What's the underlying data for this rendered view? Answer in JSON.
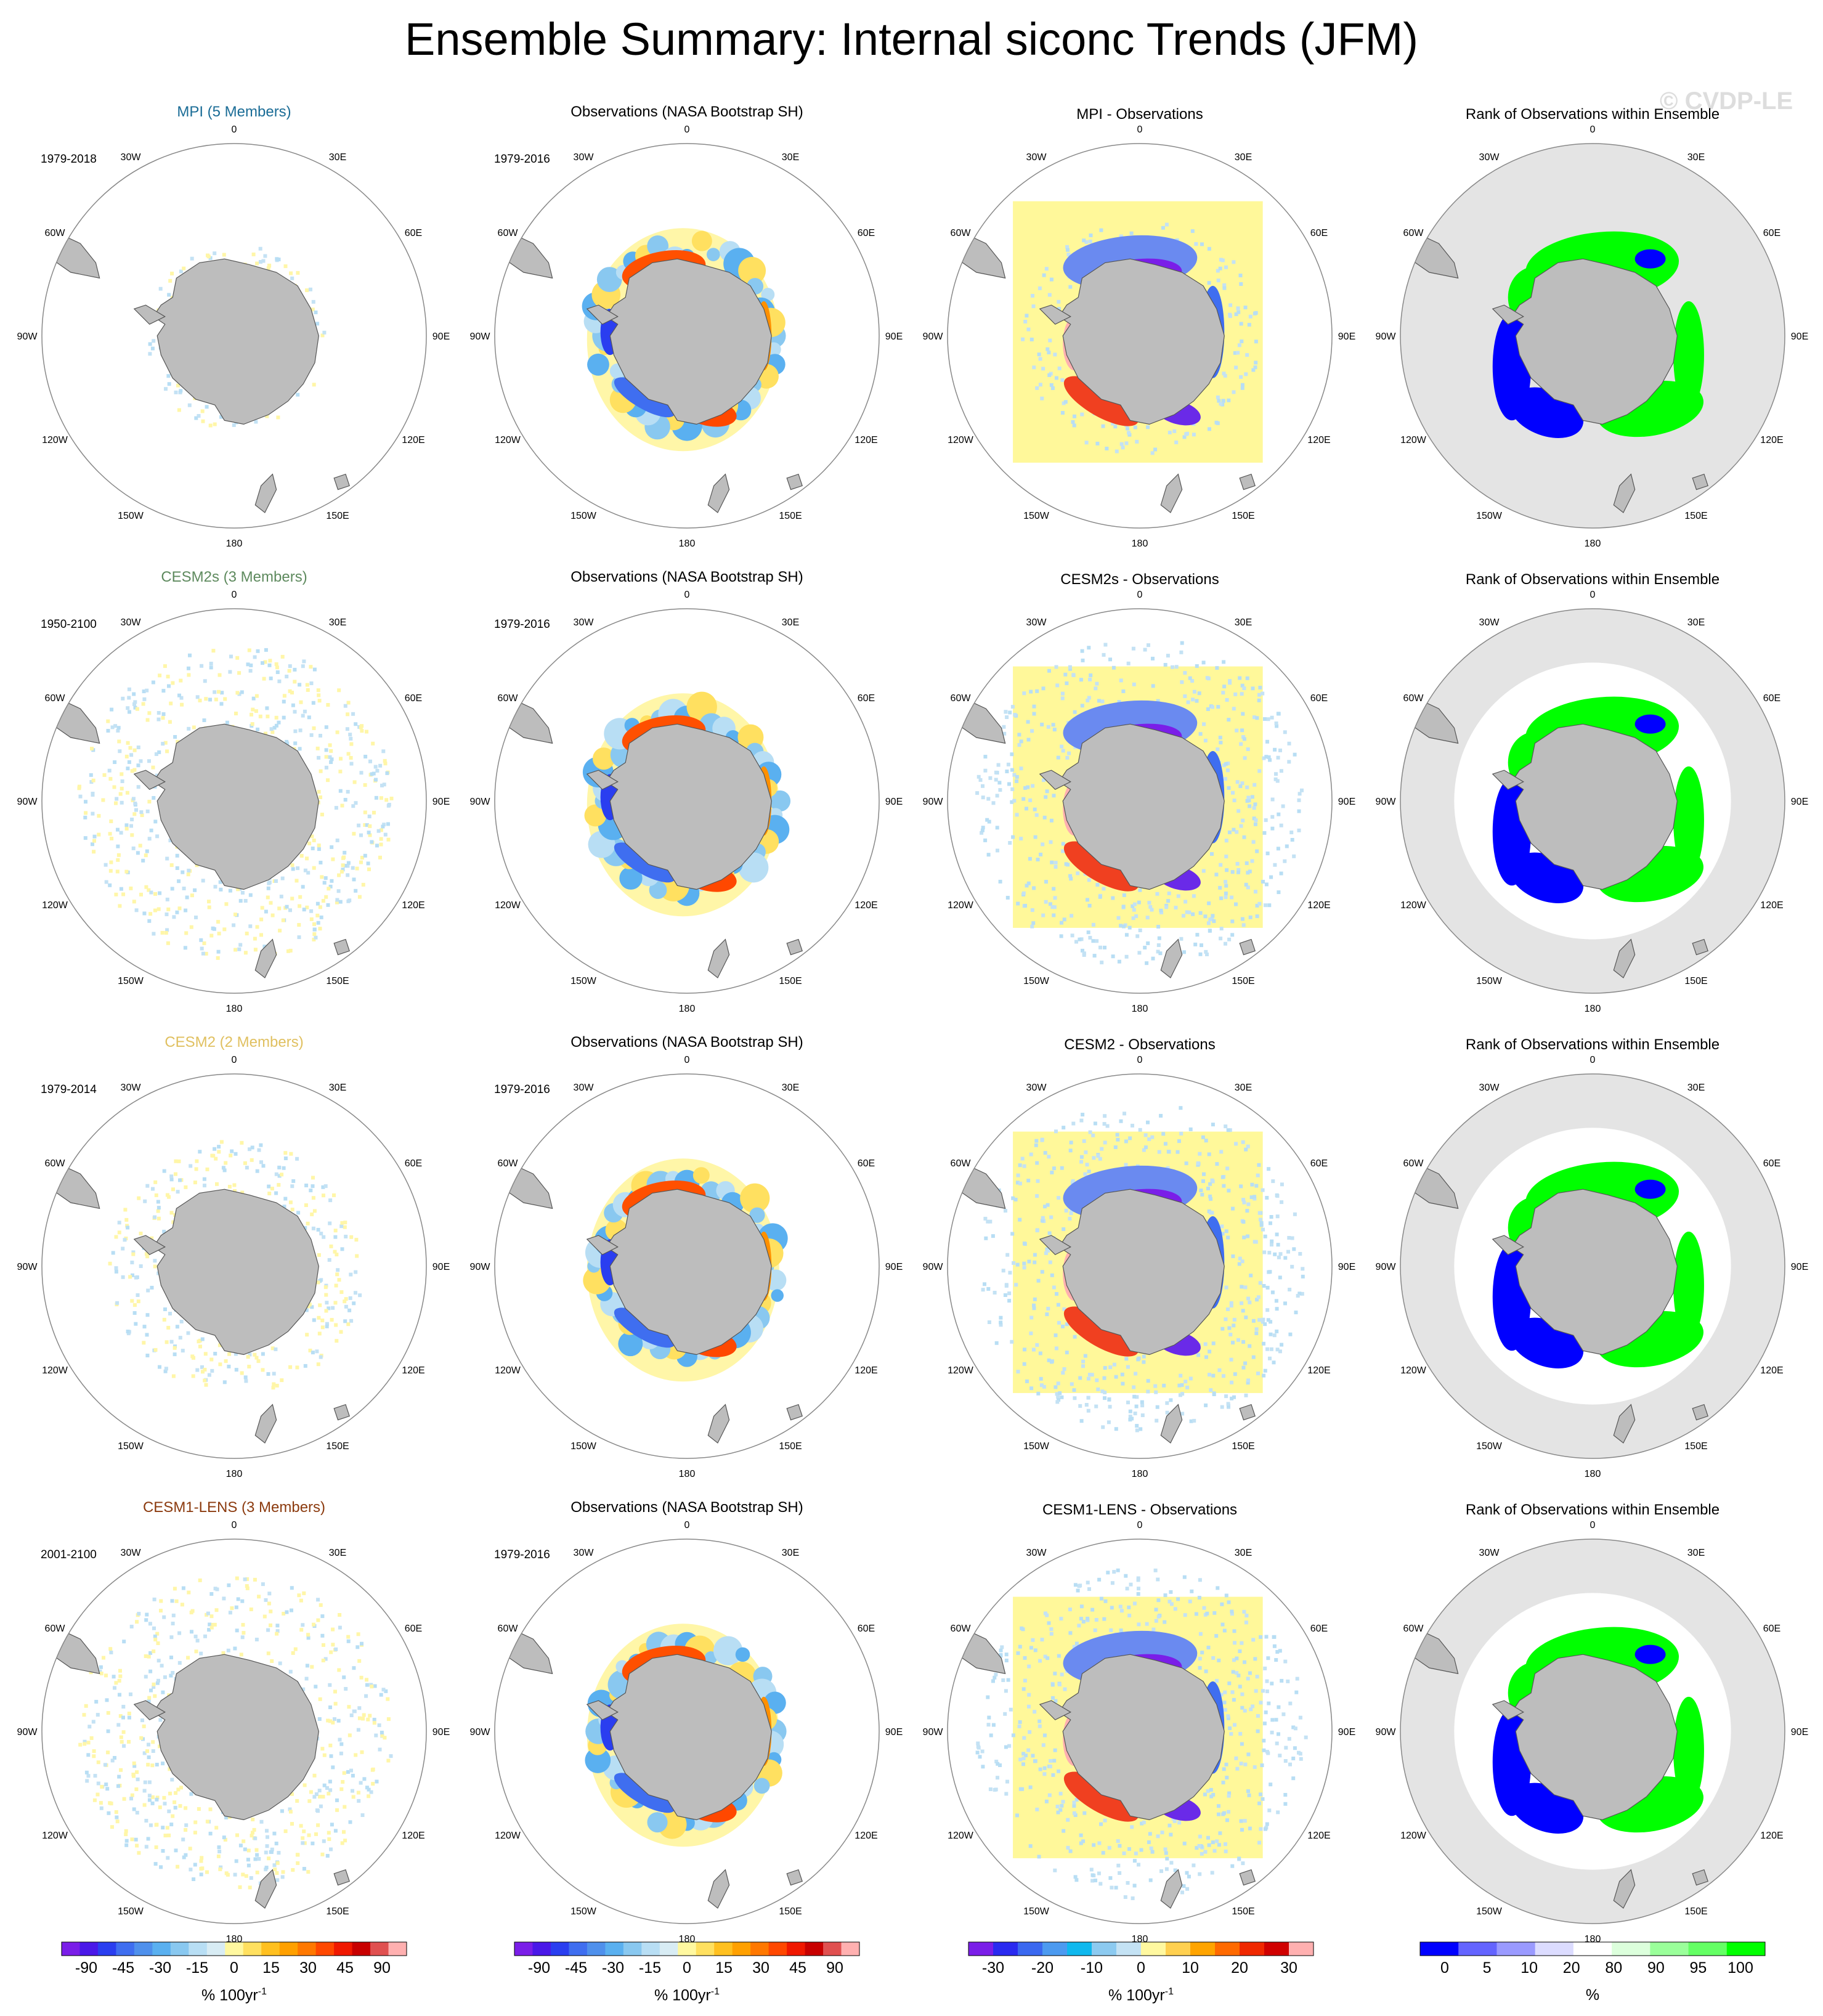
{
  "title": "Ensemble Summary: Internal siconc Trends (JFM)",
  "watermark": "© CVDP-LE",
  "rows": [
    {
      "model_title": "MPI (5 Members)",
      "model_color": "#1a6c96",
      "model_period": "1979-2018",
      "obs_title": "Observations (NASA Bootstrap SH)",
      "obs_period": "1979-2016",
      "diff_title": "MPI - Observations",
      "rank_title": "Rank of Observations within Ensemble",
      "model_coverage": "small",
      "rank_halo": false
    },
    {
      "model_title": "CESM2s (3 Members)",
      "model_color": "#5e8a5e",
      "model_period": "1950-2100",
      "obs_title": "Observations (NASA Bootstrap SH)",
      "obs_period": "1979-2016",
      "diff_title": "CESM2s - Observations",
      "rank_title": "Rank of Observations within Ensemble",
      "model_coverage": "large",
      "rank_halo": true
    },
    {
      "model_title": "CESM2 (2 Members)",
      "model_color": "#e0c060",
      "model_period": "1979-2014",
      "obs_title": "Observations (NASA Bootstrap SH)",
      "obs_period": "1979-2016",
      "diff_title": "CESM2 - Observations",
      "rank_title": "Rank of Observations within Ensemble",
      "model_coverage": "medium",
      "rank_halo": true
    },
    {
      "model_title": "CESM1-LENS (3 Members)",
      "model_color": "#8b3a0e",
      "model_period": "2001-2100",
      "obs_title": "Observations (NASA Bootstrap SH)",
      "obs_period": "1979-2016",
      "diff_title": "CESM1-LENS - Observations",
      "rank_title": "Rank of Observations within Ensemble",
      "model_coverage": "large",
      "rank_halo": true
    }
  ],
  "map": {
    "lat_labels": [
      "0",
      "30E",
      "60E",
      "90E",
      "120E",
      "150E",
      "180",
      "150W",
      "120W",
      "90W",
      "60W",
      "30W"
    ],
    "land_color": "#bdbdbd",
    "rank_ocean_color": "#e4e4e4"
  },
  "colorbars": [
    {
      "labels": [
        "-90",
        "-45",
        "-30",
        "-15",
        "0",
        "15",
        "30",
        "45",
        "90"
      ],
      "unit": "% 100yr",
      "colors": [
        "#7a1ee8",
        "#4a18e8",
        "#2a3ef0",
        "#3f6ef0",
        "#4f90ec",
        "#5ab0f0",
        "#89c8f0",
        "#b8def4",
        "#d8ecf4",
        "#fff8a0",
        "#ffe060",
        "#ffc020",
        "#ffa000",
        "#ff7800",
        "#ff4800",
        "#f01800",
        "#c80000",
        "#e05050",
        "#ffb0b0"
      ]
    },
    {
      "labels": [
        "-90",
        "-45",
        "-30",
        "-15",
        "0",
        "15",
        "30",
        "45",
        "90"
      ],
      "unit": "% 100yr",
      "colors": [
        "#7a1ee8",
        "#4a18e8",
        "#2a3ef0",
        "#3f6ef0",
        "#4f90ec",
        "#5ab0f0",
        "#89c8f0",
        "#b8def4",
        "#d8ecf4",
        "#fff8a0",
        "#ffe060",
        "#ffc020",
        "#ffa000",
        "#ff7800",
        "#ff4800",
        "#f01800",
        "#c80000",
        "#e05050",
        "#ffb0b0"
      ]
    },
    {
      "labels": [
        "-30",
        "-20",
        "-10",
        "0",
        "10",
        "20",
        "30"
      ],
      "unit": "% 100yr",
      "colors": [
        "#7a1ee8",
        "#2a2af0",
        "#3a68f0",
        "#4c9af0",
        "#10b8ee",
        "#8ccaf0",
        "#c4e2f4",
        "#fff8a0",
        "#ffd050",
        "#ffa400",
        "#ff6a00",
        "#f02800",
        "#d00000",
        "#ffb0b0"
      ]
    },
    {
      "labels": [
        "0",
        "5",
        "10",
        "20",
        "80",
        "90",
        "95",
        "100"
      ],
      "unit": "%",
      "colors": [
        "#0000ff",
        "#6464ff",
        "#9a9aff",
        "#dcdcff",
        "#ffffff",
        "#dcffdc",
        "#9aff9a",
        "#64ff64",
        "#00ff00"
      ]
    }
  ],
  "unit_exponent": "-1"
}
